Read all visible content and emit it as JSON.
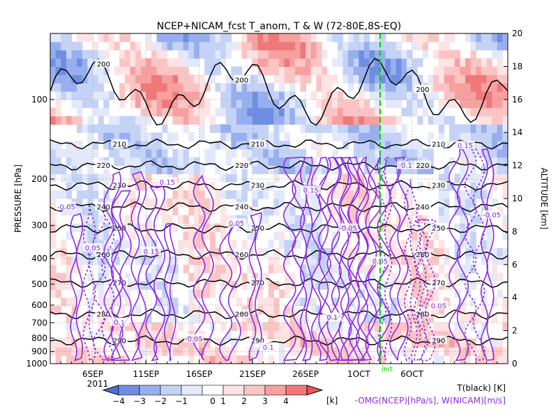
{
  "chart_data": {
    "type": "heatmap",
    "title": "NCEP+NICAM_fcst T_anom, T & W  (72-80E,8S-EQ)",
    "ylabel_left": "PRESSURE [hPa]",
    "ylabel_right": "ALTITUDE [km]",
    "x_start_date": "2011-09-02",
    "x_end_date": "2011-10-15",
    "x_ticks": [
      "6SEP",
      "11SEP",
      "16SEP",
      "21SEP",
      "26SEP",
      "1OCT",
      "6OCT"
    ],
    "x_year_label": "2011",
    "init_label": "init",
    "init_date": "2011-10-03",
    "pressure_range_hPa": [
      1000,
      50
    ],
    "pressure_ticks": [
      100,
      200,
      300,
      400,
      500,
      600,
      700,
      800,
      900,
      1000
    ],
    "altitude_range_km": [
      0,
      20
    ],
    "altitude_ticks": [
      0,
      2,
      4,
      6,
      8,
      10,
      12,
      14,
      16,
      18,
      20
    ],
    "colorbar": {
      "ticks": [
        -4,
        -3,
        -2,
        -1,
        0,
        1,
        2,
        3,
        4
      ],
      "unit": "[k]",
      "levels": [
        -4,
        -3,
        -2,
        -1,
        -0.5,
        0.5,
        1,
        2,
        3,
        4
      ],
      "colors": [
        "#4a6fd6",
        "#6f8ee3",
        "#97afee",
        "#c4d2f6",
        "#e3e9fb",
        "#ffffff",
        "#fde3e3",
        "#fbc4c4",
        "#f6a0a0",
        "#f07878",
        "#ea5555"
      ]
    },
    "legend_T": "T(black) [K]",
    "legend_W": "-OMG(NCEP)[hPa/s], W(NICAM)[m/s]",
    "temperature_contours_K": [
      200,
      210,
      220,
      230,
      240,
      250,
      260,
      270,
      280,
      290
    ],
    "vertical_motion_contours": [
      -0.05,
      0.05,
      0.1,
      0.15
    ],
    "temperature_anomaly_color": "#e8756f",
    "vertical_motion_color": "#8a2be2",
    "init_line_color": "#00cc00"
  }
}
